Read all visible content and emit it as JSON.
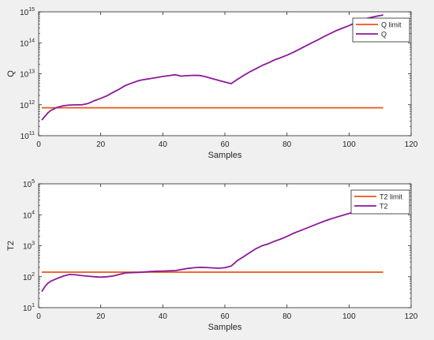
{
  "figure": {
    "background": "#f0f0f0"
  },
  "chart_data": [
    {
      "type": "line",
      "xlabel": "Samples",
      "ylabel": "Q",
      "xlim": [
        0,
        120
      ],
      "ylim_exp": [
        11,
        15
      ],
      "yscale": "log",
      "grid": false,
      "legend_position": "top-right",
      "x_ticks": [
        "0",
        "20",
        "40",
        "60",
        "80",
        "100",
        "120"
      ],
      "y_tick_base": "10",
      "y_tick_exponents": [
        "11",
        "12",
        "13",
        "14",
        "15"
      ],
      "series": [
        {
          "name": "Q limit",
          "color": "#e8561c",
          "x": [
            1,
            111
          ],
          "y": [
            800000000000.0,
            800000000000.0
          ]
        },
        {
          "name": "Q",
          "color": "#8b1a9a",
          "x": [
            1,
            2,
            3,
            4,
            6,
            8,
            10,
            12,
            14,
            16,
            18,
            20,
            22,
            24,
            26,
            28,
            30,
            32,
            34,
            36,
            38,
            40,
            42,
            44,
            46,
            48,
            50,
            52,
            54,
            56,
            58,
            60,
            62,
            64,
            66,
            68,
            70,
            72,
            74,
            76,
            78,
            80,
            82,
            84,
            86,
            88,
            90,
            92,
            94,
            96,
            98,
            100,
            102,
            104,
            106,
            108,
            110,
            111
          ],
          "y": [
            320000000000.0,
            420000000000.0,
            550000000000.0,
            660000000000.0,
            820000000000.0,
            930000000000.0,
            980000000000.0,
            990000000000.0,
            1000000000000.0,
            1100000000000.0,
            1350000000000.0,
            1600000000000.0,
            1950000000000.0,
            2500000000000.0,
            3200000000000.0,
            4200000000000.0,
            5000000000000.0,
            5900000000000.0,
            6500000000000.0,
            7000000000000.0,
            7600000000000.0,
            8200000000000.0,
            8700000000000.0,
            9300000000000.0,
            8400000000000.0,
            8700000000000.0,
            8900000000000.0,
            8800000000000.0,
            7900000000000.0,
            6900000000000.0,
            6100000000000.0,
            5400000000000.0,
            4800000000000.0,
            6500000000000.0,
            8800000000000.0,
            11500000000000.0,
            14500000000000.0,
            18500000000000.0,
            22500000000000.0,
            28000000000000.0,
            33000000000000.0,
            40000000000000.0,
            49000000000000.0,
            62000000000000.0,
            79000000000000.0,
            100000000000000.0,
            125000000000000.0,
            160000000000000.0,
            200000000000000.0,
            250000000000000.0,
            300000000000000.0,
            360000000000000.0,
            440000000000000.0,
            530000000000000.0,
            620000000000000.0,
            690000000000000.0,
            760000000000000.0,
            790000000000000.0
          ]
        }
      ]
    },
    {
      "type": "line",
      "xlabel": "Samples",
      "ylabel": "T2",
      "xlim": [
        0,
        120
      ],
      "ylim_exp": [
        1,
        5
      ],
      "yscale": "log",
      "grid": false,
      "legend_position": "top-right",
      "x_ticks": [
        "0",
        "20",
        "40",
        "60",
        "80",
        "100",
        "120"
      ],
      "y_tick_base": "10",
      "y_tick_exponents": [
        "1",
        "2",
        "3",
        "4",
        "5"
      ],
      "series": [
        {
          "name": "T2 limit",
          "color": "#e8561c",
          "x": [
            1,
            111
          ],
          "y": [
            140,
            140
          ]
        },
        {
          "name": "T2",
          "color": "#8b1a9a",
          "x": [
            1,
            2,
            3,
            4,
            6,
            8,
            10,
            12,
            14,
            16,
            18,
            20,
            22,
            24,
            26,
            28,
            30,
            32,
            34,
            36,
            38,
            40,
            42,
            44,
            46,
            48,
            50,
            52,
            54,
            56,
            58,
            60,
            62,
            64,
            66,
            68,
            70,
            72,
            74,
            76,
            78,
            80,
            82,
            84,
            86,
            88,
            90,
            92,
            94,
            96,
            98,
            100,
            102,
            104,
            106,
            108,
            110,
            111
          ],
          "y": [
            33,
            48,
            62,
            72,
            88,
            105,
            118,
            115,
            108,
            104,
            100,
            97,
            100,
            105,
            118,
            132,
            135,
            138,
            142,
            148,
            150,
            152,
            155,
            158,
            170,
            185,
            195,
            200,
            198,
            192,
            188,
            195,
            220,
            330,
            440,
            600,
            800,
            1000,
            1150,
            1400,
            1650,
            2000,
            2500,
            3000,
            3600,
            4300,
            5200,
            6200,
            7300,
            8400,
            9600,
            11000,
            12500,
            14500,
            16500,
            19000,
            21500,
            23000
          ]
        }
      ]
    }
  ]
}
